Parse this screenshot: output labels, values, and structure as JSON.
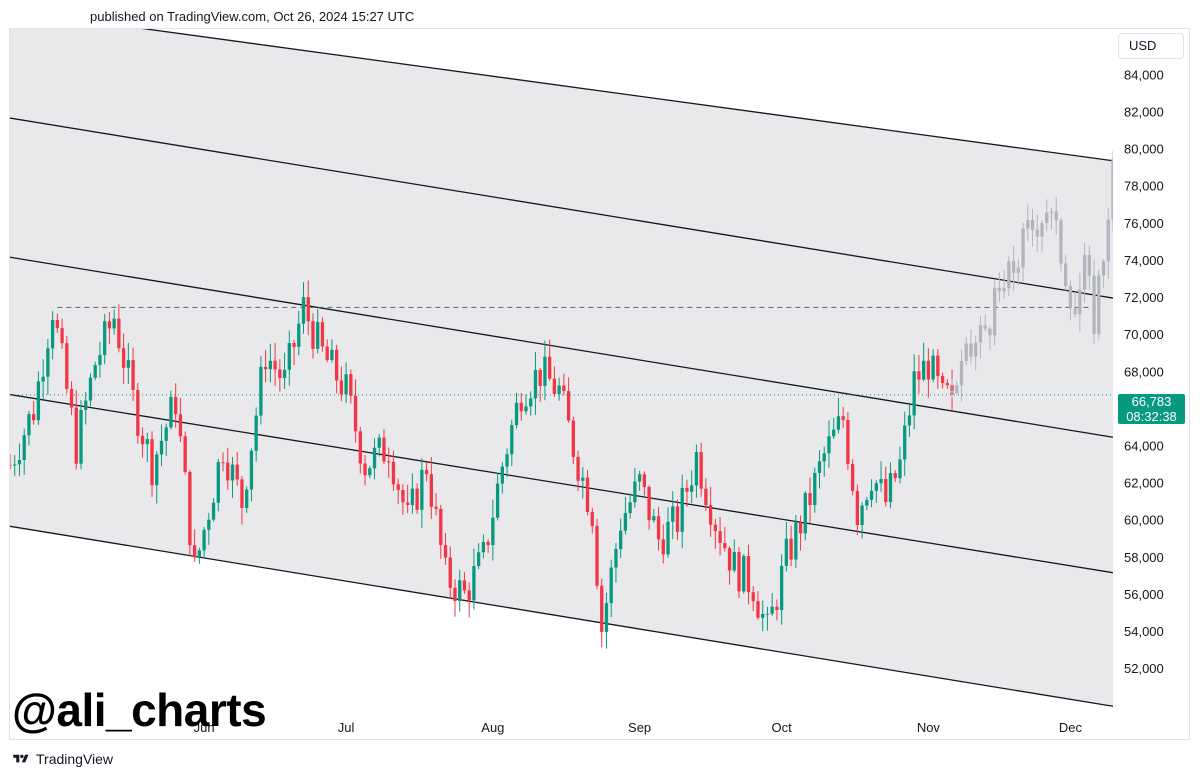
{
  "header": {
    "published": "published on TradingView.com, Oct 26, 2024 15:27 UTC"
  },
  "currency": "USD",
  "watermark": "@ali_charts",
  "brand": {
    "name": "TradingView",
    "logo_icon": "tradingview-logo-icon"
  },
  "price_badge": {
    "price": "66,783",
    "countdown": "08:32:38",
    "color": "#089981"
  },
  "colors": {
    "up": "#089981",
    "down": "#f23645",
    "projection": "#b2b5be",
    "channel_fill": "#e9e9ec",
    "channel_line": "#131722"
  },
  "chart_data": {
    "type": "candlestick",
    "x_axis": {
      "ticks": [
        "Jun",
        "Jul",
        "Aug",
        "Sep",
        "Oct",
        "Nov",
        "Dec"
      ],
      "range": [
        "2024-04-21",
        "2024-12-10"
      ]
    },
    "y_axis": {
      "ticks": [
        "52,000",
        "54,000",
        "56,000",
        "58,000",
        "60,000",
        "62,000",
        "64,000",
        "66,000",
        "68,000",
        "70,000",
        "72,000",
        "74,000",
        "76,000",
        "78,000",
        "80,000",
        "82,000",
        "84,000"
      ],
      "range": [
        49800,
        86500
      ]
    },
    "last_price": 66783,
    "horizontal_lines": [
      {
        "style": "dashed",
        "value": 71500,
        "from": "2024-05-01",
        "to": "2024-12-05"
      },
      {
        "style": "dotted",
        "value": 66783
      }
    ],
    "channel_lines": [
      {
        "from": [
          "2024-04-21",
          87500
        ],
        "to": [
          "2024-12-10",
          79400
        ]
      },
      {
        "from": [
          "2024-04-21",
          81700
        ],
        "to": [
          "2024-12-10",
          72000
        ]
      },
      {
        "from": [
          "2024-04-21",
          74200
        ],
        "to": [
          "2024-12-10",
          64500
        ]
      },
      {
        "from": [
          "2024-04-21",
          66800
        ],
        "to": [
          "2024-12-10",
          57200
        ]
      },
      {
        "from": [
          "2024-04-21",
          59700
        ],
        "to": [
          "2024-12-10",
          50000
        ]
      }
    ],
    "anchor_candles": [
      [
        "2024-04-21",
        63000
      ],
      [
        "2024-04-26",
        66000
      ],
      [
        "2024-04-30",
        71500
      ],
      [
        "2024-05-05",
        64000
      ],
      [
        "2024-05-09",
        68500
      ],
      [
        "2024-05-13",
        71000
      ],
      [
        "2024-05-17",
        66500
      ],
      [
        "2024-05-21",
        63000
      ],
      [
        "2024-05-26",
        66500
      ],
      [
        "2024-05-30",
        57300
      ],
      [
        "2024-06-05",
        64000
      ],
      [
        "2024-06-09",
        61000
      ],
      [
        "2024-06-14",
        69000
      ],
      [
        "2024-06-18",
        67500
      ],
      [
        "2024-06-22",
        71500
      ],
      [
        "2024-06-26",
        69000
      ],
      [
        "2024-07-01",
        67000
      ],
      [
        "2024-07-05",
        63000
      ],
      [
        "2024-07-10",
        64000
      ],
      [
        "2024-07-14",
        60000
      ],
      [
        "2024-07-18",
        63000
      ],
      [
        "2024-07-22",
        57000
      ],
      [
        "2024-07-26",
        56000
      ],
      [
        "2024-07-30",
        58000
      ],
      [
        "2024-08-03",
        63000
      ],
      [
        "2024-08-07",
        67000
      ],
      [
        "2024-08-11",
        68000
      ],
      [
        "2024-08-15",
        67000
      ],
      [
        "2024-08-18",
        64000
      ],
      [
        "2024-08-22",
        60500
      ],
      [
        "2024-08-24",
        54200
      ],
      [
        "2024-08-28",
        60000
      ],
      [
        "2024-09-01",
        62000
      ],
      [
        "2024-09-05",
        59000
      ],
      [
        "2024-09-09",
        60000
      ],
      [
        "2024-09-13",
        63500
      ],
      [
        "2024-09-17",
        60000
      ],
      [
        "2024-09-21",
        57500
      ],
      [
        "2024-09-25",
        56500
      ],
      [
        "2024-09-28",
        54000
      ],
      [
        "2024-10-02",
        58000
      ],
      [
        "2024-10-06",
        60500
      ],
      [
        "2024-10-10",
        63500
      ],
      [
        "2024-10-14",
        65500
      ],
      [
        "2024-10-17",
        60500
      ],
      [
        "2024-10-20",
        62500
      ],
      [
        "2024-10-23",
        61000
      ],
      [
        "2024-10-26",
        63000
      ],
      [
        "2024-10-29",
        67500
      ],
      [
        "2024-11-01",
        68500
      ],
      [
        "2024-11-04",
        66500
      ],
      [
        "2024-11-06",
        66800
      ]
    ],
    "projection_path": [
      [
        "2024-11-06",
        67000
      ],
      [
        "2024-11-10",
        69000
      ],
      [
        "2024-11-14",
        71000
      ],
      [
        "2024-11-18",
        73000
      ],
      [
        "2024-11-22",
        75500
      ],
      [
        "2024-11-26",
        77000
      ],
      [
        "2024-11-29",
        74500
      ],
      [
        "2024-12-02",
        71500
      ],
      [
        "2024-12-04",
        73500
      ],
      [
        "2024-12-06",
        71000
      ],
      [
        "2024-12-08",
        74500
      ],
      [
        "2024-12-10",
        79500
      ]
    ]
  }
}
